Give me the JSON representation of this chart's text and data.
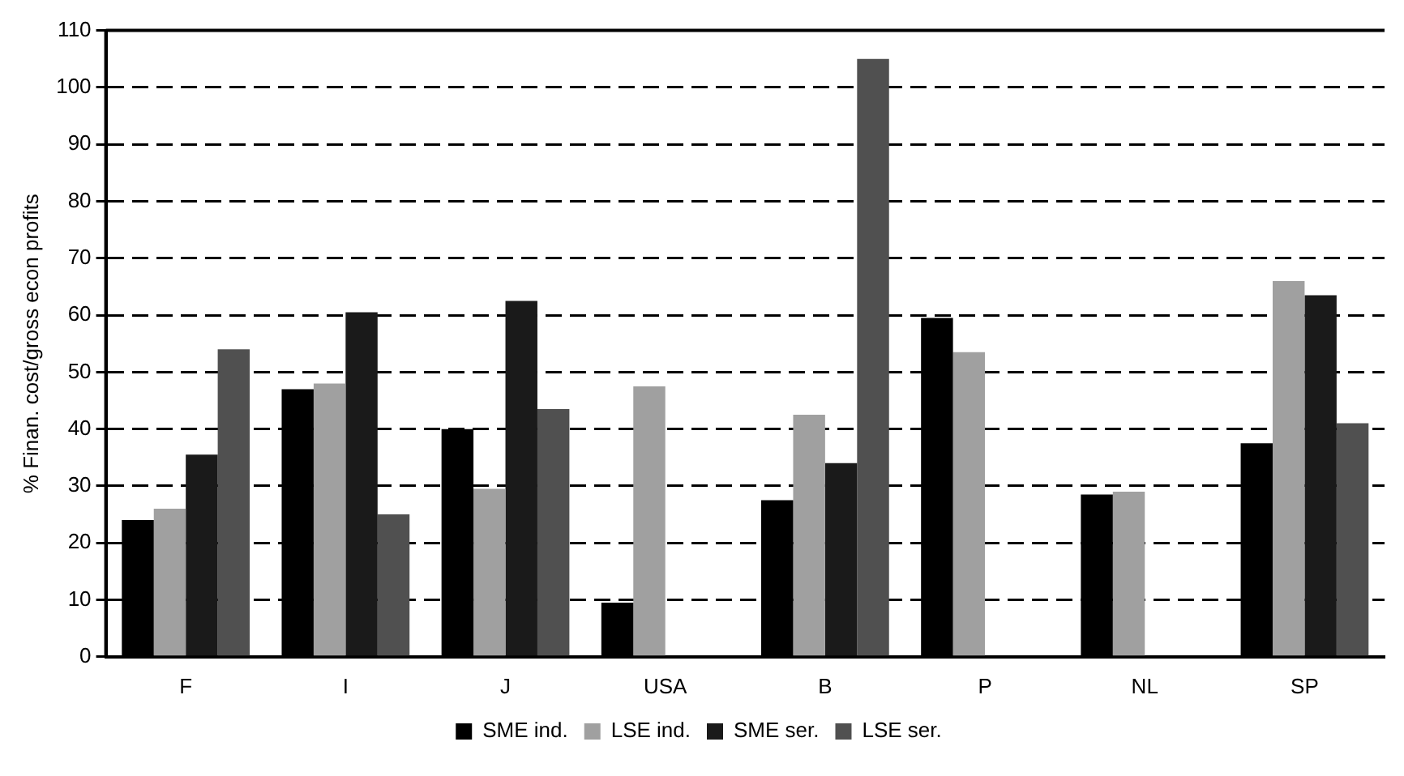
{
  "chart_data": {
    "type": "bar",
    "ylabel": "% Finan. cost/gross econ profits",
    "categories": [
      "F",
      "I",
      "J",
      "USA",
      "B",
      "P",
      "NL",
      "SP"
    ],
    "series": [
      {
        "name": "SME ind.",
        "color": "#000000",
        "values": [
          24,
          47,
          40,
          9.5,
          27.5,
          59.5,
          28.5,
          37.5
        ]
      },
      {
        "name": "LSE ind.",
        "color": "#a0a0a0",
        "values": [
          26,
          48,
          29.5,
          47.5,
          42.5,
          53.5,
          29,
          66
        ]
      },
      {
        "name": "SME ser.",
        "color": "#1a1a1a",
        "values": [
          35.5,
          60.5,
          62.5,
          null,
          34,
          null,
          null,
          63.5
        ]
      },
      {
        "name": "LSE ser.",
        "color": "#505050",
        "values": [
          54,
          25,
          43.5,
          null,
          105,
          null,
          null,
          41
        ]
      }
    ],
    "ylim": [
      0,
      110
    ],
    "yticks": [
      0,
      10,
      20,
      30,
      40,
      50,
      60,
      70,
      80,
      90,
      100,
      110
    ],
    "grid": "y",
    "legend": "bottom",
    "line_style": "dashed"
  }
}
